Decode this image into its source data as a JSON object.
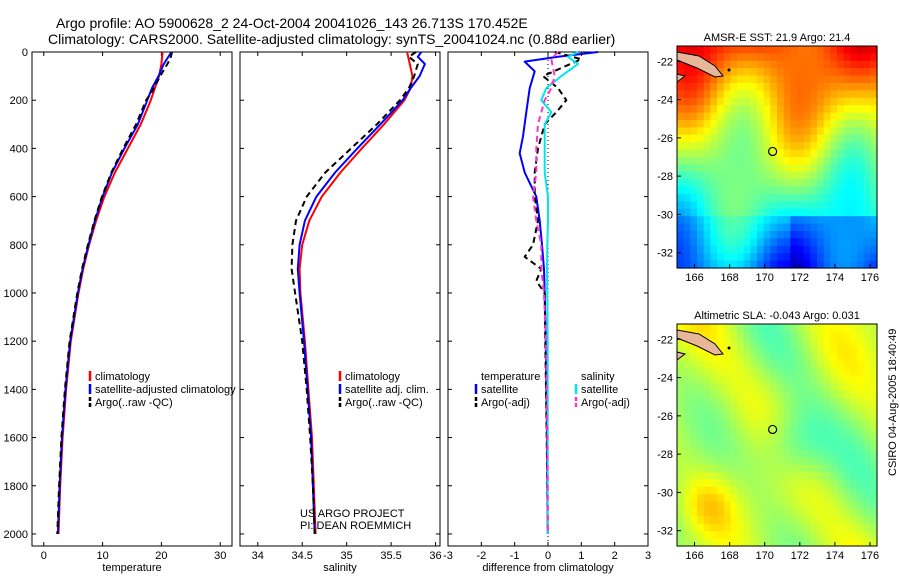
{
  "header": {
    "line1": "Argo profile: AO 5900628_2 24-Oct-2004 20041026_143 26.713S 170.452E",
    "line2": "Climatology: CARS2000. Satellite-adjusted climatology: synTS_20041024.nc (0.88d earlier)"
  },
  "credit": {
    "line1": "US ARGO PROJECT",
    "line2": "PI: DEAN ROEMMICH"
  },
  "side_stamp": "CSIRO 04-Aug-2005 18:40:49",
  "colors": {
    "climatology": "#ff0000",
    "satellite": "#0000ff",
    "argo": "#000000",
    "satellite_salinity": "#00e5ee",
    "argo_salinity": "#ff33cc"
  },
  "chart_data": [
    {
      "type": "line",
      "panel": "temperature",
      "xlabel": "temperature",
      "ylabel": "",
      "xlim": [
        -2,
        32
      ],
      "ylim": [
        2050,
        0
      ],
      "xticks": [
        0,
        10,
        20,
        30
      ],
      "yticks": [
        0,
        200,
        400,
        600,
        800,
        1000,
        1200,
        1400,
        1600,
        1800,
        2000
      ],
      "legend": [
        "climatology",
        "satellite-adjusted climatology",
        "Argo(..raw -QC)"
      ],
      "series": [
        {
          "name": "climatology",
          "color": "#ff0000",
          "style": "solid",
          "depth": [
            0,
            50,
            100,
            150,
            200,
            300,
            400,
            500,
            600,
            700,
            800,
            900,
            1000,
            1200,
            1400,
            1600,
            1800,
            2000
          ],
          "values": [
            20.2,
            20.0,
            19.6,
            18.9,
            18.2,
            16.5,
            14.3,
            12.1,
            10.3,
            8.9,
            7.7,
            6.7,
            5.9,
            4.6,
            3.8,
            3.2,
            2.8,
            2.5
          ]
        },
        {
          "name": "satellite-adjusted climatology",
          "color": "#0000ff",
          "style": "solid",
          "depth": [
            0,
            50,
            100,
            150,
            200,
            300,
            400,
            500,
            600,
            700,
            800,
            900,
            1000,
            1200,
            1400,
            1600,
            1800,
            2000
          ],
          "values": [
            21.7,
            20.4,
            19.5,
            18.4,
            17.6,
            16.0,
            13.7,
            11.6,
            10.0,
            8.7,
            7.6,
            6.6,
            5.8,
            4.5,
            3.7,
            3.1,
            2.7,
            2.4
          ]
        },
        {
          "name": "Argo(..raw -QC)",
          "color": "#000000",
          "style": "dashed",
          "depth": [
            0,
            30,
            100,
            160,
            200,
            300,
            400,
            500,
            600,
            700,
            800,
            900,
            1000,
            1200,
            1400,
            1600,
            1800,
            2000
          ],
          "values": [
            21.8,
            21.5,
            19.8,
            18.5,
            17.4,
            15.7,
            13.5,
            11.5,
            9.9,
            8.6,
            7.5,
            6.5,
            5.7,
            4.4,
            3.6,
            3.0,
            2.6,
            2.3
          ]
        }
      ]
    },
    {
      "type": "line",
      "panel": "salinity",
      "xlabel": "salinity",
      "ylabel": "",
      "xlim": [
        33.8,
        36.05
      ],
      "ylim": [
        2050,
        0
      ],
      "xticks": [
        34,
        34.5,
        35,
        35.5,
        36
      ],
      "legend": [
        "climatology",
        "satellite adj. clim.",
        "Argo(..raw -QC)"
      ],
      "series": [
        {
          "name": "climatology",
          "color": "#ff0000",
          "style": "solid",
          "depth": [
            0,
            50,
            100,
            150,
            200,
            300,
            400,
            500,
            600,
            700,
            800,
            900,
            1000,
            1200,
            1400,
            1600,
            1800,
            2000
          ],
          "values": [
            35.68,
            35.71,
            35.74,
            35.72,
            35.65,
            35.42,
            35.17,
            34.93,
            34.72,
            34.58,
            34.5,
            34.47,
            34.48,
            34.53,
            34.57,
            34.61,
            34.63,
            34.65
          ]
        },
        {
          "name": "satellite adj. clim.",
          "color": "#0000ff",
          "style": "solid",
          "depth": [
            0,
            20,
            50,
            100,
            150,
            200,
            300,
            400,
            500,
            600,
            700,
            800,
            900,
            1000,
            1200,
            1400,
            1600,
            1800,
            2000
          ],
          "values": [
            35.84,
            35.8,
            35.88,
            35.82,
            35.72,
            35.63,
            35.38,
            35.12,
            34.87,
            34.66,
            34.53,
            34.47,
            34.45,
            34.47,
            34.52,
            34.56,
            34.6,
            34.62,
            34.64
          ]
        },
        {
          "name": "Argo(..raw -QC)",
          "color": "#000000",
          "style": "dashed",
          "depth": [
            0,
            20,
            50,
            100,
            150,
            200,
            300,
            400,
            500,
            600,
            700,
            800,
            900,
            1000,
            1200,
            1400,
            1600,
            1800,
            2000
          ],
          "values": [
            35.78,
            35.7,
            35.8,
            35.76,
            35.7,
            35.6,
            35.34,
            35.05,
            34.76,
            34.55,
            34.43,
            34.39,
            34.38,
            34.42,
            34.5,
            34.55,
            34.59,
            34.62,
            34.64
          ]
        }
      ]
    },
    {
      "type": "line",
      "panel": "difference",
      "xlabel": "difference from climatology",
      "ylabel": "",
      "xlim": [
        -3,
        3
      ],
      "ylim": [
        2050,
        0
      ],
      "xticks": [
        -3,
        -2,
        -1,
        0,
        1,
        2,
        3
      ],
      "legend_left_title": "temperature",
      "legend_left": [
        "satellite",
        "Argo(-adj)"
      ],
      "legend_right_title": "salinity",
      "legend_right": [
        "satellite",
        "Argo(-adj)"
      ],
      "series": [
        {
          "name": "satellite",
          "group": "temperature",
          "color": "#0000ff",
          "style": "solid",
          "depth": [
            0,
            20,
            40,
            80,
            150,
            250,
            350,
            420,
            500,
            600,
            700,
            800,
            900,
            1000,
            1200,
            1400,
            1600,
            1800,
            2000
          ],
          "values": [
            1.5,
            0.3,
            -0.7,
            -0.4,
            -0.55,
            -0.65,
            -0.75,
            -0.85,
            -0.7,
            -0.35,
            -0.25,
            -0.18,
            -0.12,
            -0.1,
            -0.07,
            -0.05,
            -0.03,
            -0.02,
            -0.01
          ]
        },
        {
          "name": "Argo(-adj)",
          "group": "temperature",
          "color": "#000000",
          "style": "dashed",
          "depth": [
            0,
            30,
            60,
            100,
            150,
            200,
            250,
            300,
            400,
            500,
            600,
            700,
            800,
            850,
            900,
            950,
            1000,
            1200,
            1400,
            1600,
            1800,
            2000
          ],
          "values": [
            0.2,
            1.0,
            0.5,
            -0.15,
            0.3,
            0.55,
            0.25,
            -0.1,
            -0.3,
            -0.4,
            -0.4,
            -0.3,
            -0.45,
            -0.7,
            -0.2,
            -0.35,
            -0.1,
            -0.08,
            -0.06,
            -0.04,
            -0.02,
            -0.01
          ]
        },
        {
          "name": "satellite",
          "group": "salinity",
          "color": "#00e5ee",
          "style": "solid",
          "depth": [
            0,
            20,
            50,
            100,
            150,
            200,
            250,
            300,
            400,
            500,
            600,
            700,
            800,
            900,
            1000,
            1200,
            1400,
            1600,
            1800,
            2000
          ],
          "values": [
            0.9,
            0.6,
            0.9,
            0.4,
            -0.05,
            -0.2,
            0.1,
            -0.1,
            -0.1,
            -0.1,
            0.0,
            0.0,
            -0.02,
            -0.03,
            -0.02,
            -0.01,
            -0.01,
            -0.01,
            -0.01,
            -0.01
          ]
        },
        {
          "name": "Argo(-adj)",
          "group": "salinity",
          "color": "#ff33cc",
          "style": "dashed",
          "depth": [
            0,
            30,
            100,
            150,
            200,
            300,
            400,
            500,
            600,
            700,
            800,
            900,
            1000,
            1200,
            1400,
            1600,
            1800,
            2000
          ],
          "values": [
            0.3,
            0.1,
            0.2,
            0.1,
            -0.1,
            -0.3,
            -0.35,
            -0.35,
            -0.45,
            -0.35,
            -0.2,
            -0.2,
            -0.12,
            -0.06,
            -0.04,
            -0.02,
            -0.01,
            0.0
          ]
        }
      ]
    },
    {
      "type": "heatmap",
      "panel": "sst_map",
      "title": "AMSR-E SST: 21.9 Argo: 21.4",
      "xlim": [
        165,
        176.4
      ],
      "ylim": [
        -32.8,
        -21.2
      ],
      "xticks": [
        166,
        168,
        170,
        172,
        174,
        176
      ],
      "yticks": [
        -22,
        -24,
        -26,
        -28,
        -30,
        -32
      ],
      "profile_marker": {
        "lon": 170.45,
        "lat": -26.71
      },
      "colormap": "jet"
    },
    {
      "type": "heatmap",
      "panel": "sla_map",
      "title": "Altimetric SLA: -0.043 Argo: 0.031",
      "xlim": [
        165,
        176.4
      ],
      "ylim": [
        -32.8,
        -21.2
      ],
      "xticks": [
        166,
        168,
        170,
        172,
        174,
        176
      ],
      "yticks": [
        -22,
        -24,
        -26,
        -28,
        -30,
        -32
      ],
      "profile_marker": {
        "lon": 170.45,
        "lat": -26.71
      },
      "colormap": "jet"
    }
  ]
}
